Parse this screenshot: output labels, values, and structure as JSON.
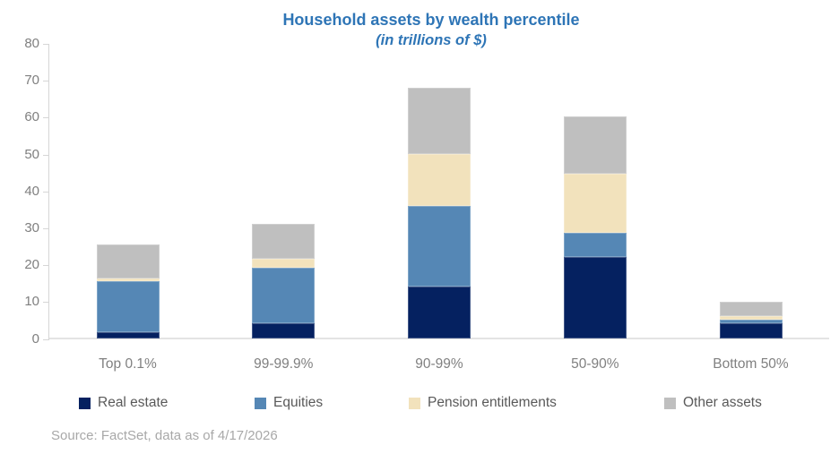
{
  "source_note": "Source: FactSet, data as of 4/17/2026",
  "colors": {
    "title_text": "#2E75B6",
    "axis_line": "#D6D6D6",
    "baseline": "#E4E4E4",
    "tick_label_text": "#7F7F7F",
    "category_label_text": "#808080",
    "legend_text": "#595959",
    "source_text": "#A8A8A8"
  },
  "chart_data": {
    "type": "bar",
    "stacked": true,
    "title": "Household assets by wealth percentile",
    "subtitle": "(in trillions of $)",
    "xlabel": "",
    "ylabel": "",
    "categories": [
      "Top 0.1%",
      "99-99.9%",
      "90-99%",
      "50-90%",
      "Bottom 50%"
    ],
    "series": [
      {
        "name": "Real estate",
        "color": "#052160",
        "values": [
          1.8,
          4.3,
          14.3,
          22.3,
          4.2
        ]
      },
      {
        "name": "Equities",
        "color": "#5587B5",
        "values": [
          13.8,
          14.9,
          21.7,
          6.5,
          0.9
        ]
      },
      {
        "name": "Pension entitlements",
        "color": "#F2E2BC",
        "values": [
          0.7,
          2.5,
          14.2,
          16.0,
          1.2
        ]
      },
      {
        "name": "Other assets",
        "color": "#BFBFBF",
        "values": [
          9.4,
          9.5,
          17.8,
          15.5,
          3.7
        ]
      }
    ],
    "stack_totals": [
      25.7,
      31.2,
      68.0,
      60.3,
      10.0
    ],
    "ylim": [
      0,
      80
    ],
    "yticks": [
      0,
      10,
      20,
      30,
      40,
      50,
      60,
      70,
      80
    ],
    "grid": false,
    "legend_position": "bottom"
  }
}
